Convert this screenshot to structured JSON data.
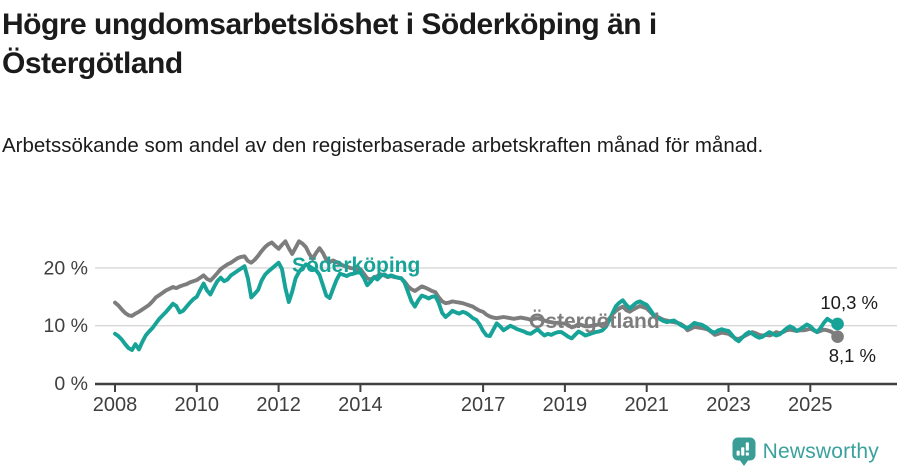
{
  "header": {
    "title": "Högre ungdomsarbetslöshet i Söderköping än i Östergötland",
    "subtitle": "Arbetssökande som andel av den registerbaserade arbetskraften månad för månad."
  },
  "footer": {
    "brand": "Newsworthy",
    "logo_icon": "bar-chart-speech-bubble-icon"
  },
  "colors": {
    "soderkoping_teal": "#17a398",
    "ostergotland_gray": "#7d7d7d",
    "axis_dark": "#3f3f3f",
    "grid_light": "#d8d8d8",
    "text_dark": "#1b1b1b",
    "brand_teal": "#3ba19c"
  },
  "chart_data": {
    "type": "line",
    "title": "Högre ungdomsarbetslöshet i Söderköping än i Östergötland",
    "subtitle": "Arbetssökande som andel av den registerbaserade arbetskraften månad för månad.",
    "frequency": "monthly",
    "x_start_year": 2008,
    "x_start_month": 1,
    "x_end_year": 2025,
    "x_end_month": 9,
    "ylim": [
      0,
      26
    ],
    "grid": "horizontal",
    "legend": "inline-labels",
    "y_ticks": [
      {
        "value": 0,
        "label": "0 %"
      },
      {
        "value": 10,
        "label": "10 %"
      },
      {
        "value": 20,
        "label": "20 %"
      }
    ],
    "x_ticks": [
      2008,
      2010,
      2012,
      2014,
      2017,
      2019,
      2021,
      2023,
      2025
    ],
    "series": [
      {
        "name": "Söderköping",
        "color": "#17a398",
        "end_value": 10.3,
        "end_label": "10,3 %",
        "values": [
          8.6,
          8.2,
          7.6,
          6.8,
          6.1,
          5.8,
          6.8,
          5.9,
          7.2,
          8.3,
          9.0,
          9.6,
          10.4,
          11.2,
          11.8,
          12.4,
          13.1,
          13.8,
          13.4,
          12.3,
          12.6,
          13.3,
          14.0,
          14.6,
          15.0,
          16.2,
          17.3,
          16.1,
          15.4,
          16.6,
          17.7,
          18.3,
          17.7,
          18.0,
          18.7,
          19.1,
          19.5,
          19.9,
          20.3,
          18.2,
          14.9,
          15.5,
          16.2,
          17.8,
          18.8,
          19.4,
          19.9,
          20.4,
          20.9,
          19.8,
          16.5,
          14.1,
          15.9,
          18.2,
          19.3,
          20.0,
          20.6,
          20.3,
          19.9,
          19.6,
          18.8,
          17.0,
          15.2,
          14.8,
          16.4,
          17.9,
          19.0,
          18.8,
          18.6,
          18.9,
          19.0,
          19.2,
          19.2,
          18.3,
          17.0,
          17.6,
          18.4,
          18.0,
          18.6,
          18.9,
          18.5,
          18.7,
          18.5,
          18.3,
          18.2,
          17.4,
          15.8,
          14.2,
          13.3,
          14.4,
          15.2,
          15.0,
          14.7,
          15.0,
          15.1,
          13.9,
          12.2,
          11.5,
          12.0,
          12.6,
          12.3,
          12.1,
          12.4,
          12.2,
          11.8,
          11.3,
          11.0,
          10.2,
          9.1,
          8.3,
          8.2,
          9.3,
          10.4,
          9.9,
          9.2,
          9.6,
          10.0,
          9.7,
          9.4,
          9.2,
          9.0,
          8.7,
          8.6,
          9.0,
          9.4,
          8.8,
          8.3,
          8.6,
          8.4,
          8.7,
          8.9,
          8.9,
          8.5,
          8.1,
          7.8,
          8.4,
          9.0,
          8.7,
          8.3,
          8.5,
          8.7,
          8.9,
          9.0,
          9.2,
          9.8,
          10.9,
          12.2,
          13.4,
          14.0,
          14.4,
          13.6,
          13.0,
          13.5,
          14.0,
          14.2,
          13.9,
          13.6,
          12.8,
          11.9,
          11.5,
          11.1,
          10.8,
          10.6,
          10.8,
          10.9,
          10.5,
          10.1,
          9.8,
          9.6,
          10.0,
          10.5,
          10.3,
          10.2,
          9.9,
          9.5,
          9.0,
          8.8,
          9.2,
          9.4,
          9.2,
          9.1,
          8.4,
          7.7,
          7.3,
          7.9,
          8.5,
          8.9,
          8.6,
          8.2,
          7.9,
          8.1,
          8.5,
          8.9,
          8.6,
          8.3,
          8.5,
          9.0,
          9.5,
          9.9,
          9.6,
          9.1,
          9.4,
          9.8,
          10.2,
          9.9,
          9.3,
          8.9,
          9.6,
          10.5,
          11.2,
          10.8,
          10.5,
          10.3
        ]
      },
      {
        "name": "Östergötland",
        "color": "#7d7d7d",
        "end_value": 8.1,
        "end_label": "8,1 %",
        "values": [
          14.0,
          13.5,
          12.8,
          12.2,
          11.8,
          11.7,
          12.1,
          12.4,
          12.8,
          13.2,
          13.6,
          14.2,
          14.9,
          15.3,
          15.7,
          16.1,
          16.4,
          16.7,
          16.5,
          16.8,
          17.0,
          17.2,
          17.5,
          17.7,
          17.9,
          18.3,
          18.7,
          18.1,
          17.8,
          18.4,
          19.1,
          19.8,
          20.2,
          20.6,
          20.9,
          21.3,
          21.7,
          21.9,
          22.0,
          21.2,
          20.9,
          21.4,
          22.1,
          22.9,
          23.6,
          24.1,
          24.4,
          23.8,
          23.3,
          24.0,
          24.6,
          23.4,
          22.4,
          23.5,
          24.6,
          24.2,
          23.6,
          22.4,
          21.6,
          22.6,
          23.4,
          22.6,
          21.4,
          21.0,
          21.3,
          21.0,
          20.7,
          20.4,
          20.2,
          20.0,
          19.9,
          19.8,
          19.8,
          19.0,
          18.2,
          18.0,
          18.3,
          18.6,
          18.9,
          18.7,
          18.4,
          18.6,
          18.4,
          18.3,
          18.2,
          17.6,
          16.8,
          16.3,
          16.0,
          16.4,
          16.8,
          16.6,
          16.3,
          16.0,
          15.8,
          14.9,
          14.2,
          13.9,
          14.0,
          14.2,
          14.1,
          14.0,
          13.9,
          13.7,
          13.5,
          13.3,
          12.9,
          12.6,
          12.4,
          11.9,
          11.6,
          11.4,
          11.3,
          11.4,
          11.5,
          11.4,
          11.3,
          11.2,
          11.3,
          11.4,
          11.3,
          11.2,
          11.0,
          11.2,
          11.3,
          11.1,
          10.9,
          10.7,
          10.6,
          10.5,
          10.5,
          10.4,
          10.4,
          10.1,
          9.7,
          9.9,
          10.3,
          10.1,
          9.9,
          9.9,
          10.0,
          10.1,
          10.2,
          10.3,
          10.4,
          11.2,
          12.0,
          12.6,
          13.0,
          13.3,
          12.7,
          12.4,
          12.8,
          13.1,
          13.4,
          13.2,
          13.0,
          12.4,
          11.8,
          11.6,
          11.3,
          11.0,
          10.9,
          10.7,
          10.6,
          10.5,
          10.3,
          9.9,
          9.2,
          9.5,
          9.8,
          9.7,
          9.6,
          9.5,
          9.3,
          8.9,
          8.4,
          8.6,
          8.8,
          8.7,
          8.6,
          8.2,
          7.8,
          7.7,
          8.0,
          8.3,
          8.6,
          8.9,
          8.7,
          8.4,
          8.3,
          8.4,
          8.3,
          8.5,
          8.9,
          8.7,
          8.9,
          9.2,
          9.3,
          9.2,
          9.1,
          9.2,
          9.2,
          9.3,
          9.5,
          9.2,
          8.9,
          9.1,
          9.3,
          9.2,
          9.0,
          8.6,
          8.1
        ]
      }
    ]
  }
}
